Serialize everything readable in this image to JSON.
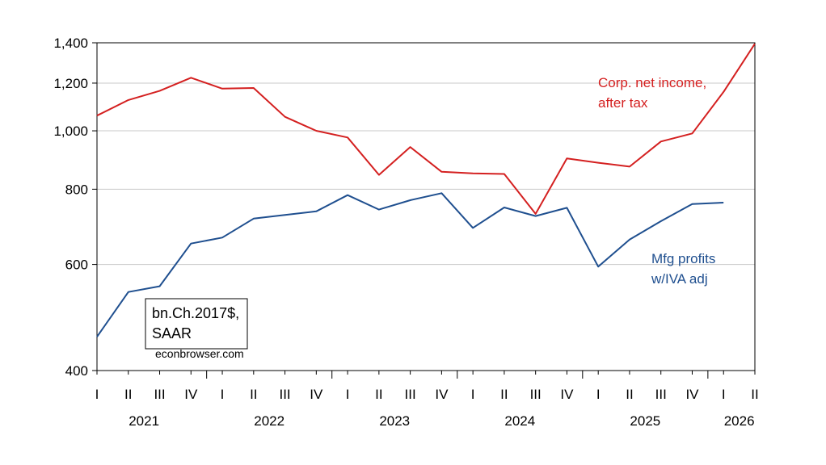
{
  "chart_data": {
    "type": "line",
    "y_scale": "log",
    "ylim": [
      400,
      1400
    ],
    "yticks": [
      400,
      600,
      800,
      1000,
      1200,
      1400
    ],
    "ytick_labels": [
      "400",
      "600",
      "800",
      "1,000",
      "1,200",
      "1,400"
    ],
    "grid": "horizontal",
    "x": [
      "2021 I",
      "2021 II",
      "2021 III",
      "2021 IV",
      "2022 I",
      "2022 II",
      "2022 III",
      "2022 IV",
      "2023 I",
      "2023 II",
      "2023 III",
      "2023 IV",
      "2024 I",
      "2024 II",
      "2024 III",
      "2024 IV",
      "2025 I",
      "2025 II",
      "2025 III",
      "2025 IV",
      "2026 I",
      "2026 II"
    ],
    "quarter_labels": [
      "I",
      "II",
      "III",
      "IV",
      "I",
      "II",
      "III",
      "IV",
      "I",
      "II",
      "III",
      "IV",
      "I",
      "II",
      "III",
      "IV",
      "I",
      "II",
      "III",
      "IV",
      "I",
      "II"
    ],
    "year_labels": [
      "2021",
      "2022",
      "2023",
      "2024",
      "2025",
      "2026"
    ],
    "series": [
      {
        "name": "Corp. net income, after tax",
        "label_lines": [
          "Corp. net income,",
          "after tax"
        ],
        "color": "#d42020",
        "values": [
          1060,
          1125,
          1165,
          1225,
          1175,
          1178,
          1055,
          1000,
          975,
          845,
          940,
          855,
          850,
          848,
          728,
          900,
          885,
          872,
          960,
          990,
          1160,
          1395
        ]
      },
      {
        "name": "Mfg profits w/IVA adj",
        "label_lines": [
          "Mfg profits",
          "w/IVA adj"
        ],
        "color": "#1f4f8f",
        "values": [
          455,
          540,
          552,
          650,
          665,
          715,
          725,
          735,
          782,
          740,
          767,
          788,
          690,
          746,
          722,
          745,
          595,
          660,
          708,
          756,
          760,
          null
        ]
      }
    ],
    "annotations": {
      "units_lines": [
        "bn.Ch.2017$,",
        "SAAR"
      ],
      "credit": "econbrowser.com"
    }
  }
}
